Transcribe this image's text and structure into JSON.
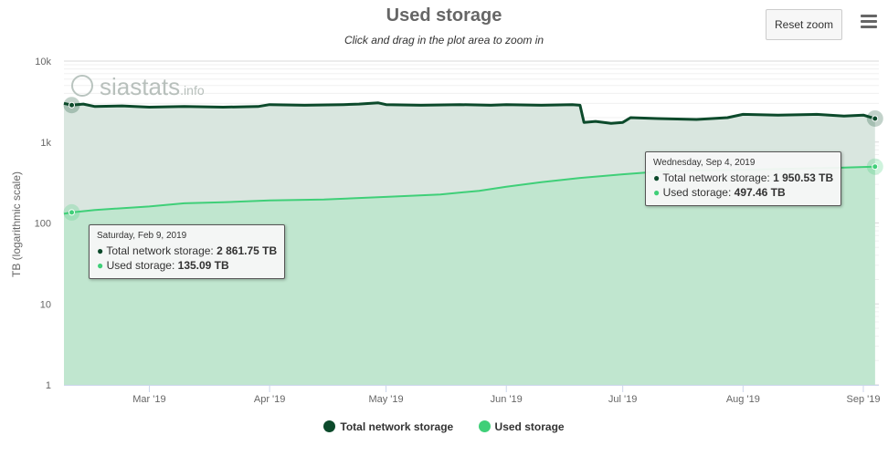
{
  "header": {
    "title": "Used storage",
    "subtitle": "Click and drag in the plot area to zoom in",
    "reset_zoom_label": "Reset zoom"
  },
  "watermark": {
    "text": "siastats",
    "suffix": ".info",
    "icon": "siastats-logo-icon"
  },
  "colors": {
    "total": "#0c4a2b",
    "used": "#3fcf78",
    "total_area": "#d9e6df",
    "used_area": "#bde6cd"
  },
  "tooltips": [
    {
      "date": "Saturday, Feb 9, 2019",
      "rows": [
        {
          "label": "Total network storage: ",
          "value": "2 861.75 TB"
        },
        {
          "label": "Used storage: ",
          "value": "135.09 TB"
        }
      ]
    },
    {
      "date": "Wednesday, Sep 4, 2019",
      "rows": [
        {
          "label": "Total network storage: ",
          "value": "1 950.53 TB"
        },
        {
          "label": "Used storage: ",
          "value": "497.46 TB"
        }
      ]
    }
  ],
  "chart_data": {
    "type": "area",
    "title": "Used storage",
    "subtitle": "Click and drag in the plot area to zoom in",
    "xlabel": "",
    "ylabel": "TB (logarithmic scale)",
    "y_scale": "log",
    "ylim": [
      1,
      10000
    ],
    "xlim": [
      "2019-02-07",
      "2019-09-05"
    ],
    "y_ticks": [
      {
        "value": 1,
        "label": "1"
      },
      {
        "value": 10,
        "label": "10"
      },
      {
        "value": 100,
        "label": "100"
      },
      {
        "value": 1000,
        "label": "1k"
      },
      {
        "value": 10000,
        "label": "10k"
      }
    ],
    "x_ticks": [
      {
        "date": "2019-03-01",
        "label": "Mar '19"
      },
      {
        "date": "2019-04-01",
        "label": "Apr '19"
      },
      {
        "date": "2019-05-01",
        "label": "May '19"
      },
      {
        "date": "2019-06-01",
        "label": "Jun '19"
      },
      {
        "date": "2019-07-01",
        "label": "Jul '19"
      },
      {
        "date": "2019-08-01",
        "label": "Aug '19"
      },
      {
        "date": "2019-09-01",
        "label": "Sep '19"
      }
    ],
    "grid": true,
    "legend": "bottom",
    "series": [
      {
        "name": "Total network storage",
        "points": [
          [
            "2019-02-07",
            3000
          ],
          [
            "2019-02-09",
            2862
          ],
          [
            "2019-02-12",
            2950
          ],
          [
            "2019-02-15",
            2750
          ],
          [
            "2019-02-22",
            2800
          ],
          [
            "2019-03-01",
            2700
          ],
          [
            "2019-03-10",
            2750
          ],
          [
            "2019-03-20",
            2700
          ],
          [
            "2019-03-29",
            2750
          ],
          [
            "2019-04-01",
            2900
          ],
          [
            "2019-04-10",
            2850
          ],
          [
            "2019-04-20",
            2900
          ],
          [
            "2019-04-24",
            2950
          ],
          [
            "2019-04-29",
            3050
          ],
          [
            "2019-05-01",
            2900
          ],
          [
            "2019-05-10",
            2850
          ],
          [
            "2019-05-20",
            2900
          ],
          [
            "2019-05-28",
            2850
          ],
          [
            "2019-06-01",
            2900
          ],
          [
            "2019-06-10",
            2850
          ],
          [
            "2019-06-18",
            2900
          ],
          [
            "2019-06-20",
            2850
          ],
          [
            "2019-06-21",
            1750
          ],
          [
            "2019-06-24",
            1800
          ],
          [
            "2019-06-28",
            1700
          ],
          [
            "2019-07-01",
            1750
          ],
          [
            "2019-07-03",
            2000
          ],
          [
            "2019-07-10",
            1950
          ],
          [
            "2019-07-20",
            1900
          ],
          [
            "2019-07-28",
            2000
          ],
          [
            "2019-08-01",
            2200
          ],
          [
            "2019-08-10",
            2150
          ],
          [
            "2019-08-20",
            2200
          ],
          [
            "2019-08-27",
            2100
          ],
          [
            "2019-09-01",
            2150
          ],
          [
            "2019-09-04",
            1951
          ]
        ]
      },
      {
        "name": "Used storage",
        "points": [
          [
            "2019-02-07",
            130
          ],
          [
            "2019-02-09",
            135
          ],
          [
            "2019-02-15",
            145
          ],
          [
            "2019-03-01",
            160
          ],
          [
            "2019-03-10",
            175
          ],
          [
            "2019-03-20",
            180
          ],
          [
            "2019-04-01",
            190
          ],
          [
            "2019-04-15",
            195
          ],
          [
            "2019-05-01",
            210
          ],
          [
            "2019-05-15",
            225
          ],
          [
            "2019-05-25",
            250
          ],
          [
            "2019-06-01",
            280
          ],
          [
            "2019-06-10",
            320
          ],
          [
            "2019-06-20",
            360
          ],
          [
            "2019-07-01",
            400
          ],
          [
            "2019-07-10",
            430
          ],
          [
            "2019-07-20",
            445
          ],
          [
            "2019-08-01",
            455
          ],
          [
            "2019-08-15",
            470
          ],
          [
            "2019-08-25",
            480
          ],
          [
            "2019-09-04",
            497
          ]
        ]
      }
    ],
    "highlighted_points": [
      {
        "date": "2019-02-09",
        "total": 2862,
        "used": 135
      },
      {
        "date": "2019-09-04",
        "total": 1951,
        "used": 497
      }
    ]
  }
}
